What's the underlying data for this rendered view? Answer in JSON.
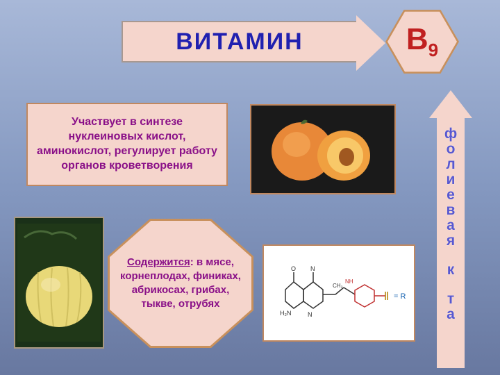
{
  "title": "ВИТАМИН",
  "vitamin_label": "B",
  "vitamin_sub": "9",
  "description": "Участвует в синтезе нуклеиновых кислот, аминокислот, регулирует работу органов кроветворения",
  "contains_heading": "Содержится",
  "contains_body": ": в мясе, корнеплодах, финиках, абрикосах, грибах, тыкве, отрубях",
  "vertical_label_chars": [
    "ф",
    "о",
    "л",
    "и",
    "е",
    "в",
    "а",
    "я",
    "",
    "к",
    "",
    "т",
    "а"
  ],
  "colors": {
    "bg_top": "#a8b8d8",
    "bg_bot": "#6878a0",
    "panel": "#f5d5cc",
    "panel_border": "#c08860",
    "title_text": "#2020b0",
    "body_text": "#8a1088",
    "vitamin_text": "#c02020",
    "vertical_text": "#5858d0"
  },
  "font_sizes": {
    "title": 34,
    "hex": 44,
    "desc": 16,
    "oct": 15,
    "vertical": 21
  }
}
